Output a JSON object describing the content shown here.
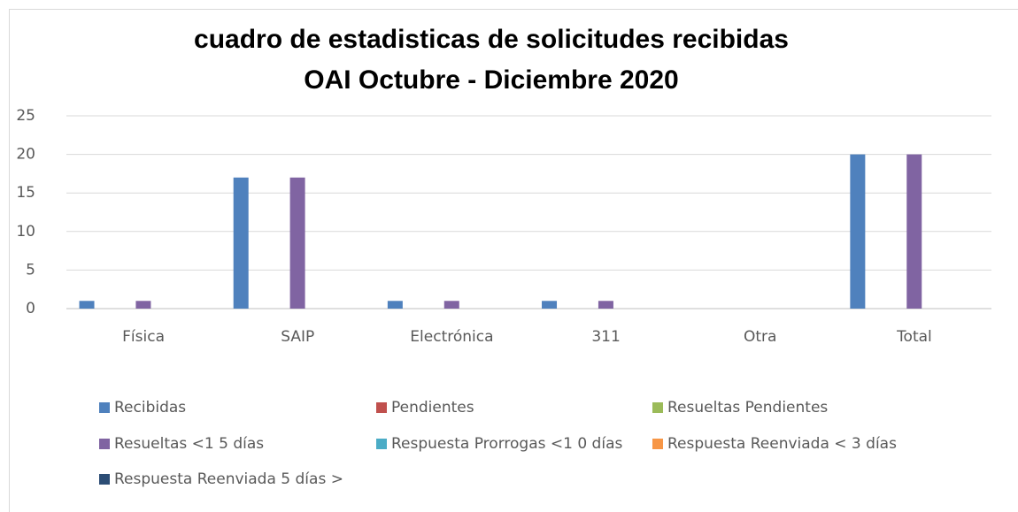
{
  "chart_data": {
    "type": "bar",
    "title": [
      "cuadro de estadisticas de solicitudes recibidas",
      "OAI Octubre - Diciembre   2020"
    ],
    "categories": [
      "Física",
      "SAIP",
      "Electrónica",
      "311",
      "Otra",
      "Total"
    ],
    "series": [
      {
        "name": "Recibidas",
        "color": "#4f81bd",
        "values": [
          1,
          17,
          1,
          1,
          0,
          20
        ]
      },
      {
        "name": "Pendientes",
        "color": "#c0504d",
        "values": [
          0,
          0,
          0,
          0,
          0,
          0
        ]
      },
      {
        "name": "Resueltas Pendientes",
        "color": "#9bbb59",
        "values": [
          0,
          0,
          0,
          0,
          0,
          0
        ]
      },
      {
        "name": "Resueltas <1 5 días",
        "color": "#8064a2",
        "values": [
          1,
          17,
          1,
          1,
          0,
          20
        ]
      },
      {
        "name": "Respuesta Prorrogas <1 0 días",
        "color": "#4bacc6",
        "values": [
          0,
          0,
          0,
          0,
          0,
          0
        ]
      },
      {
        "name": "Respuesta Reenviada < 3 días",
        "color": "#f79646",
        "values": [
          0,
          0,
          0,
          0,
          0,
          0
        ]
      },
      {
        "name": "Respuesta Reenviada 5 días >",
        "color": "#2c4d75",
        "values": [
          0,
          0,
          0,
          0,
          0,
          0
        ]
      }
    ],
    "ylim": [
      0,
      25
    ],
    "yticks": [
      0,
      5,
      10,
      15,
      20,
      25
    ],
    "grid": true,
    "legend": "bottom"
  }
}
